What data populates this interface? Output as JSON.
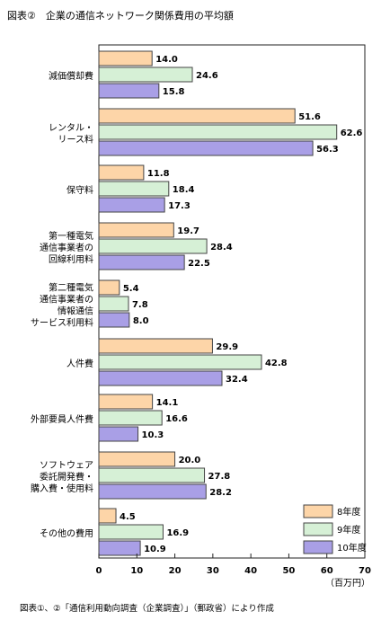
{
  "chart_data": {
    "type": "bar",
    "orientation": "horizontal",
    "title": "図表②　企業の通信ネットワーク関係費用の平均額",
    "categories": [
      [
        "減価償却費"
      ],
      [
        "レンタル・",
        "リース料"
      ],
      [
        "保守料"
      ],
      [
        "第一種電気",
        "通信事業者の",
        "回線利用料"
      ],
      [
        "第二種電気",
        "通信事業者の",
        "情報通信",
        "サービス利用料"
      ],
      [
        "人件費"
      ],
      [
        "外部要員人件費"
      ],
      [
        "ソフトウェア",
        "委託開発費・",
        "購入費・使用料"
      ],
      [
        "その他の費用"
      ]
    ],
    "series": [
      {
        "name": "8年度",
        "values": [
          14.0,
          51.6,
          11.8,
          19.7,
          5.4,
          29.9,
          14.1,
          20.0,
          4.5
        ],
        "labels": [
          "14.0",
          "51.6",
          "11.8",
          "19.7",
          "5.4",
          "29.9",
          "14.1",
          "20.0",
          "4.5"
        ],
        "color": "#fdd5a8"
      },
      {
        "name": "9年度",
        "values": [
          24.6,
          62.6,
          18.4,
          28.4,
          7.8,
          42.8,
          16.6,
          27.8,
          16.9
        ],
        "labels": [
          "24.6",
          "62.6",
          "18.4",
          "28.4",
          "7.8",
          "42.8",
          "16.6",
          "27.8",
          "16.9"
        ],
        "color": "#d6f0d6"
      },
      {
        "name": "10年度",
        "values": [
          15.8,
          56.3,
          17.3,
          22.5,
          8.0,
          32.4,
          10.3,
          28.2,
          10.9
        ],
        "labels": [
          "15.8",
          "56.3",
          "17.3",
          "22.5",
          "8.0",
          "32.4",
          "10.3",
          "28.2",
          "10.9"
        ],
        "color": "#a99fe6"
      }
    ],
    "xlim": [
      0,
      70
    ],
    "xticks": [
      "0",
      "10",
      "20",
      "30",
      "40",
      "50",
      "60",
      "70"
    ],
    "xlabel": "（百万円）",
    "legend_position": "bottom-right",
    "source": "図表①、②「通信利用動向調査（企業調査）」（郵政省）により作成"
  }
}
